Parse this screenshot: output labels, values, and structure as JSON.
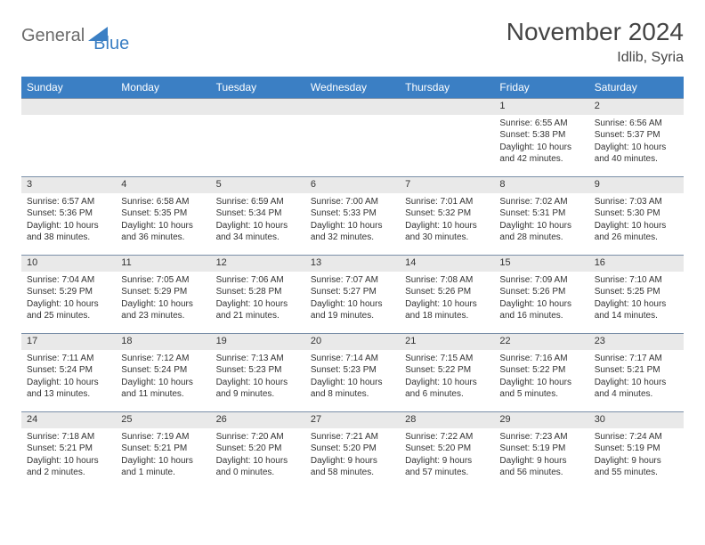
{
  "brand": {
    "part1": "General",
    "part2": "Blue"
  },
  "title": "November 2024",
  "location": "Idlib, Syria",
  "colors": {
    "header_bg": "#3b7fc4",
    "header_text": "#ffffff",
    "daynum_bg": "#e9e9e9",
    "daynum_border": "#7a8fa8",
    "text": "#333333",
    "logo_gray": "#6b6b6b",
    "logo_blue": "#3b7fc4",
    "page_bg": "#ffffff"
  },
  "day_headers": [
    "Sunday",
    "Monday",
    "Tuesday",
    "Wednesday",
    "Thursday",
    "Friday",
    "Saturday"
  ],
  "weeks": [
    [
      null,
      null,
      null,
      null,
      null,
      {
        "n": "1",
        "sr": "Sunrise: 6:55 AM",
        "ss": "Sunset: 5:38 PM",
        "dl": "Daylight: 10 hours and 42 minutes."
      },
      {
        "n": "2",
        "sr": "Sunrise: 6:56 AM",
        "ss": "Sunset: 5:37 PM",
        "dl": "Daylight: 10 hours and 40 minutes."
      }
    ],
    [
      {
        "n": "3",
        "sr": "Sunrise: 6:57 AM",
        "ss": "Sunset: 5:36 PM",
        "dl": "Daylight: 10 hours and 38 minutes."
      },
      {
        "n": "4",
        "sr": "Sunrise: 6:58 AM",
        "ss": "Sunset: 5:35 PM",
        "dl": "Daylight: 10 hours and 36 minutes."
      },
      {
        "n": "5",
        "sr": "Sunrise: 6:59 AM",
        "ss": "Sunset: 5:34 PM",
        "dl": "Daylight: 10 hours and 34 minutes."
      },
      {
        "n": "6",
        "sr": "Sunrise: 7:00 AM",
        "ss": "Sunset: 5:33 PM",
        "dl": "Daylight: 10 hours and 32 minutes."
      },
      {
        "n": "7",
        "sr": "Sunrise: 7:01 AM",
        "ss": "Sunset: 5:32 PM",
        "dl": "Daylight: 10 hours and 30 minutes."
      },
      {
        "n": "8",
        "sr": "Sunrise: 7:02 AM",
        "ss": "Sunset: 5:31 PM",
        "dl": "Daylight: 10 hours and 28 minutes."
      },
      {
        "n": "9",
        "sr": "Sunrise: 7:03 AM",
        "ss": "Sunset: 5:30 PM",
        "dl": "Daylight: 10 hours and 26 minutes."
      }
    ],
    [
      {
        "n": "10",
        "sr": "Sunrise: 7:04 AM",
        "ss": "Sunset: 5:29 PM",
        "dl": "Daylight: 10 hours and 25 minutes."
      },
      {
        "n": "11",
        "sr": "Sunrise: 7:05 AM",
        "ss": "Sunset: 5:29 PM",
        "dl": "Daylight: 10 hours and 23 minutes."
      },
      {
        "n": "12",
        "sr": "Sunrise: 7:06 AM",
        "ss": "Sunset: 5:28 PM",
        "dl": "Daylight: 10 hours and 21 minutes."
      },
      {
        "n": "13",
        "sr": "Sunrise: 7:07 AM",
        "ss": "Sunset: 5:27 PM",
        "dl": "Daylight: 10 hours and 19 minutes."
      },
      {
        "n": "14",
        "sr": "Sunrise: 7:08 AM",
        "ss": "Sunset: 5:26 PM",
        "dl": "Daylight: 10 hours and 18 minutes."
      },
      {
        "n": "15",
        "sr": "Sunrise: 7:09 AM",
        "ss": "Sunset: 5:26 PM",
        "dl": "Daylight: 10 hours and 16 minutes."
      },
      {
        "n": "16",
        "sr": "Sunrise: 7:10 AM",
        "ss": "Sunset: 5:25 PM",
        "dl": "Daylight: 10 hours and 14 minutes."
      }
    ],
    [
      {
        "n": "17",
        "sr": "Sunrise: 7:11 AM",
        "ss": "Sunset: 5:24 PM",
        "dl": "Daylight: 10 hours and 13 minutes."
      },
      {
        "n": "18",
        "sr": "Sunrise: 7:12 AM",
        "ss": "Sunset: 5:24 PM",
        "dl": "Daylight: 10 hours and 11 minutes."
      },
      {
        "n": "19",
        "sr": "Sunrise: 7:13 AM",
        "ss": "Sunset: 5:23 PM",
        "dl": "Daylight: 10 hours and 9 minutes."
      },
      {
        "n": "20",
        "sr": "Sunrise: 7:14 AM",
        "ss": "Sunset: 5:23 PM",
        "dl": "Daylight: 10 hours and 8 minutes."
      },
      {
        "n": "21",
        "sr": "Sunrise: 7:15 AM",
        "ss": "Sunset: 5:22 PM",
        "dl": "Daylight: 10 hours and 6 minutes."
      },
      {
        "n": "22",
        "sr": "Sunrise: 7:16 AM",
        "ss": "Sunset: 5:22 PM",
        "dl": "Daylight: 10 hours and 5 minutes."
      },
      {
        "n": "23",
        "sr": "Sunrise: 7:17 AM",
        "ss": "Sunset: 5:21 PM",
        "dl": "Daylight: 10 hours and 4 minutes."
      }
    ],
    [
      {
        "n": "24",
        "sr": "Sunrise: 7:18 AM",
        "ss": "Sunset: 5:21 PM",
        "dl": "Daylight: 10 hours and 2 minutes."
      },
      {
        "n": "25",
        "sr": "Sunrise: 7:19 AM",
        "ss": "Sunset: 5:21 PM",
        "dl": "Daylight: 10 hours and 1 minute."
      },
      {
        "n": "26",
        "sr": "Sunrise: 7:20 AM",
        "ss": "Sunset: 5:20 PM",
        "dl": "Daylight: 10 hours and 0 minutes."
      },
      {
        "n": "27",
        "sr": "Sunrise: 7:21 AM",
        "ss": "Sunset: 5:20 PM",
        "dl": "Daylight: 9 hours and 58 minutes."
      },
      {
        "n": "28",
        "sr": "Sunrise: 7:22 AM",
        "ss": "Sunset: 5:20 PM",
        "dl": "Daylight: 9 hours and 57 minutes."
      },
      {
        "n": "29",
        "sr": "Sunrise: 7:23 AM",
        "ss": "Sunset: 5:19 PM",
        "dl": "Daylight: 9 hours and 56 minutes."
      },
      {
        "n": "30",
        "sr": "Sunrise: 7:24 AM",
        "ss": "Sunset: 5:19 PM",
        "dl": "Daylight: 9 hours and 55 minutes."
      }
    ]
  ]
}
